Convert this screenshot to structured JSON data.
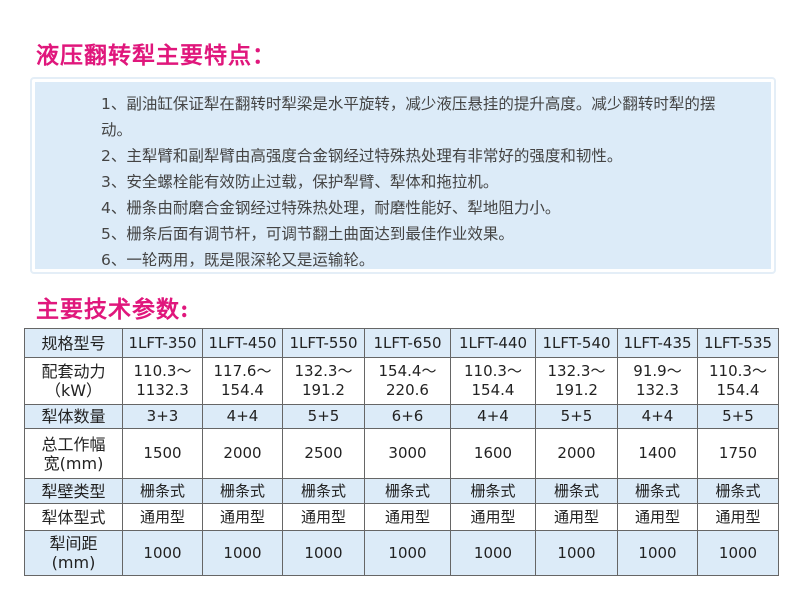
{
  "features_title": "液压翻转犁主要特点：",
  "features": [
    "1、副油缸保证犁在翻转时犁梁是水平旋转，减少液压悬挂的提升高度。减少翻转时犁的摆动。",
    "2、主犁臂和副犁臂由高强度合金钢经过特殊热处理有非常好的强度和韧性。",
    "3、安全螺栓能有效防止过载，保护犁臂、犁体和拖拉机。",
    "4、栅条由耐磨合金钢经过特殊热处理，耐磨性能好、犁地阻力小。",
    "5、栅条后面有调节杆，可调节翻土曲面达到最佳作业效果。",
    "6、一轮两用，既是限深轮又是运输轮。"
  ],
  "specs_title": "主要技术参数:",
  "table": {
    "rows": [
      {
        "label": "规格型号",
        "cells": [
          "1LFT-350",
          "1LFT-450",
          "1LFT-550",
          "1LFT-650",
          "1LFT-440",
          "1LFT-540",
          "1LFT-435",
          "1LFT-535"
        ]
      },
      {
        "label": "配套动力（kW）",
        "cells": [
          "110.3～1132.3",
          "117.6～154.4",
          "132.3～191.2",
          "154.4～220.6",
          "110.3～154.4",
          "132.3～191.2",
          "91.9～132.3",
          "110.3～154.4"
        ]
      },
      {
        "label": "犁体数量",
        "cells": [
          "3+3",
          "4+4",
          "5+5",
          "6+6",
          "4+4",
          "5+5",
          "4+4",
          "5+5"
        ]
      },
      {
        "label": "总工作幅宽(mm)",
        "cells": [
          "1500",
          "2000",
          "2500",
          "3000",
          "1600",
          "2000",
          "1400",
          "1750"
        ]
      },
      {
        "label": "犁壁类型",
        "cells": [
          "栅条式",
          "栅条式",
          "栅条式",
          "栅条式",
          "栅条式",
          "栅条式",
          "栅条式",
          "栅条式"
        ]
      },
      {
        "label": "犁体型式",
        "cells": [
          "通用型",
          "通用型",
          "通用型",
          "通用型",
          "通用型",
          "通用型",
          "通用型",
          "通用型"
        ]
      },
      {
        "label": "犁间距(mm)",
        "cells": [
          "1000",
          "1000",
          "1000",
          "1000",
          "1000",
          "1000",
          "1000",
          "1000"
        ]
      }
    ]
  },
  "colors": {
    "title": "#e0177c",
    "panel": "#dcebf8",
    "border": "#666666"
  }
}
